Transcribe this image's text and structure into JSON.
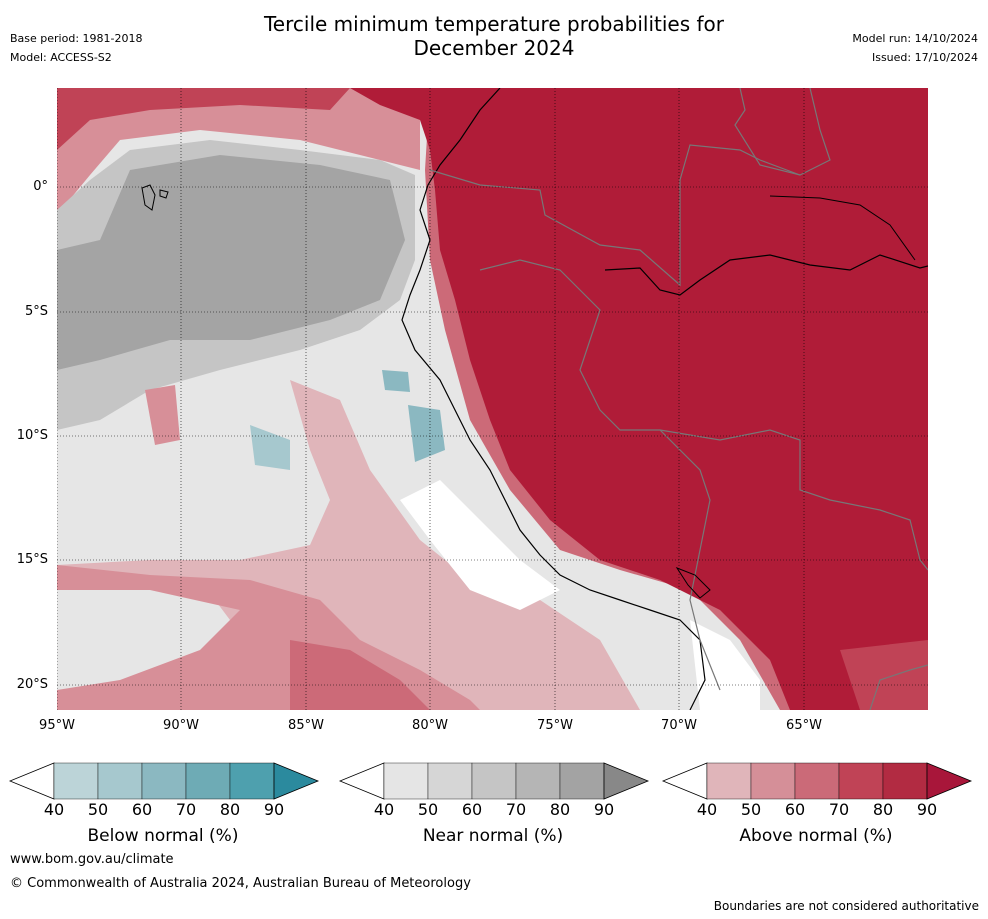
{
  "header": {
    "title_line1": "Tercile minimum temperature probabilities for",
    "title_line2": "December 2024",
    "base_period": "Base period: 1981-2018",
    "model": "Model: ACCESS-S2",
    "model_run": "Model run: 14/10/2024",
    "issued": "Issued: 17/10/2024"
  },
  "map": {
    "lat_ticks": [
      "0°",
      "5°S",
      "10°S",
      "15°S",
      "20°S"
    ],
    "lon_ticks": [
      "95°W",
      "90°W",
      "85°W",
      "80°W",
      "75°W",
      "70°W",
      "65°W"
    ],
    "colors": {
      "above_90": "#b01c38",
      "above_80": "#c04356",
      "above_70": "#cc6a78",
      "above_60": "#d78f98",
      "above_50": "#e0b5ba",
      "near_50": "#e6e6e6",
      "near_60": "#d6d6d6",
      "near_70": "#c5c5c5",
      "near_80": "#b3b3b3",
      "near_90": "#a4a4a4",
      "below_50": "#a6c8ce",
      "below_60": "#8bb8c1"
    }
  },
  "colorbars": [
    {
      "label": "Below normal (%)",
      "ticks": [
        "40",
        "50",
        "60",
        "70",
        "80",
        "90"
      ],
      "colors": [
        "#bcd4d8",
        "#a6c8ce",
        "#8bb8c1",
        "#6eabb5",
        "#4ea0ae",
        "#2b8a9e"
      ]
    },
    {
      "label": "Near normal (%)",
      "ticks": [
        "40",
        "50",
        "60",
        "70",
        "80",
        "90"
      ],
      "colors": [
        "#e5e5e5",
        "#d6d6d6",
        "#c5c5c5",
        "#b5b5b5",
        "#a3a3a3",
        "#888888"
      ]
    },
    {
      "label": "Above normal (%)",
      "ticks": [
        "40",
        "50",
        "60",
        "70",
        "80",
        "90"
      ],
      "colors": [
        "#e0b5ba",
        "#d58f98",
        "#cb6a78",
        "#c04356",
        "#b22b42",
        "#a8163a"
      ]
    }
  ],
  "footer": {
    "website": "www.bom.gov.au/climate",
    "copyright": "© Commonwealth of Australia 2024, Australian Bureau of Meteorology",
    "disclaimer": "Boundaries are not considered authoritative"
  }
}
